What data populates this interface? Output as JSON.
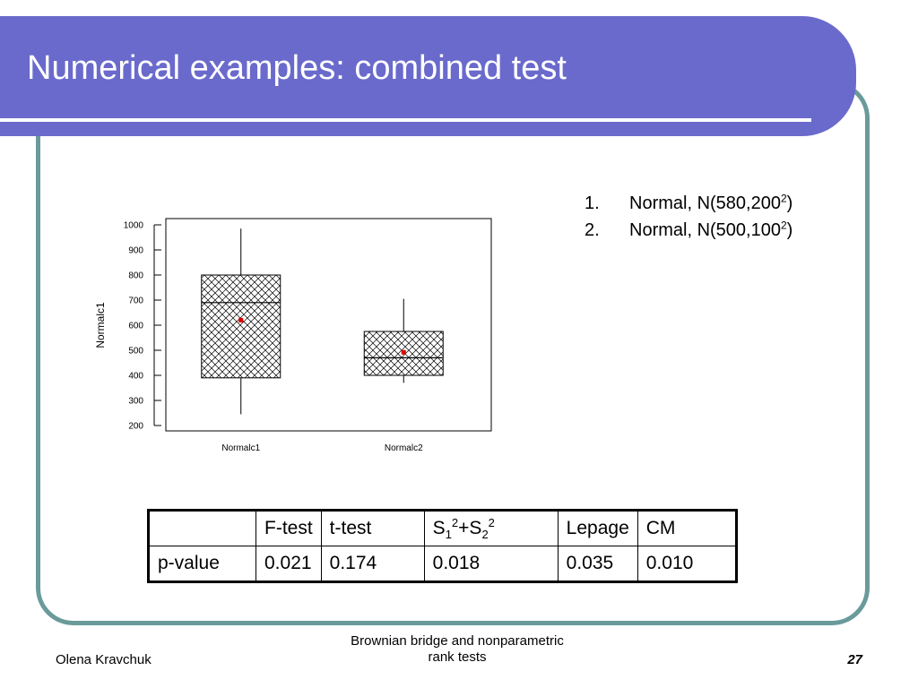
{
  "slide": {
    "title": "Numerical examples: combined test",
    "list": [
      {
        "num": "1.",
        "text": "Normal, N(580,200",
        "sup": "2",
        "close": ")"
      },
      {
        "num": "2.",
        "text": "Normal, N(500,100",
        "sup": "2",
        "close": ")"
      }
    ],
    "table": {
      "headers": [
        "",
        "F-test",
        "t-test",
        "S1²+S2²",
        "Lepage",
        "CM"
      ],
      "s_header": {
        "s1": "S",
        "sub1": "1",
        "sup1": "2",
        "plus": "+S",
        "sub2": "2",
        "sup2": "2"
      },
      "row_label": "p-value",
      "values": [
        "0.021",
        "0.174",
        "0.018",
        "0.035",
        "0.010"
      ]
    },
    "footer": {
      "author": "Olena Kravchuk",
      "title_line1": "Brownian bridge and nonparametric",
      "title_line2": "rank tests",
      "page": "27"
    }
  },
  "chart_data": {
    "type": "boxplot",
    "ylabel": "Normalc1",
    "xlabel": "",
    "ylim": [
      200,
      1000
    ],
    "yticks": [
      200,
      300,
      400,
      500,
      600,
      700,
      800,
      900,
      1000
    ],
    "categories": [
      "Normalc1",
      "Normalc2"
    ],
    "boxes": [
      {
        "name": "Normalc1",
        "whisker_low": 245,
        "q1": 390,
        "median": 690,
        "q3": 800,
        "whisker_high": 985,
        "mean": 620
      },
      {
        "name": "Normalc2",
        "whisker_low": 370,
        "q1": 400,
        "median": 470,
        "q3": 575,
        "whisker_high": 705,
        "mean": 492
      }
    ],
    "colors": {
      "mean_marker": "#dd0000",
      "box_stroke": "#000000"
    },
    "grid": false
  }
}
